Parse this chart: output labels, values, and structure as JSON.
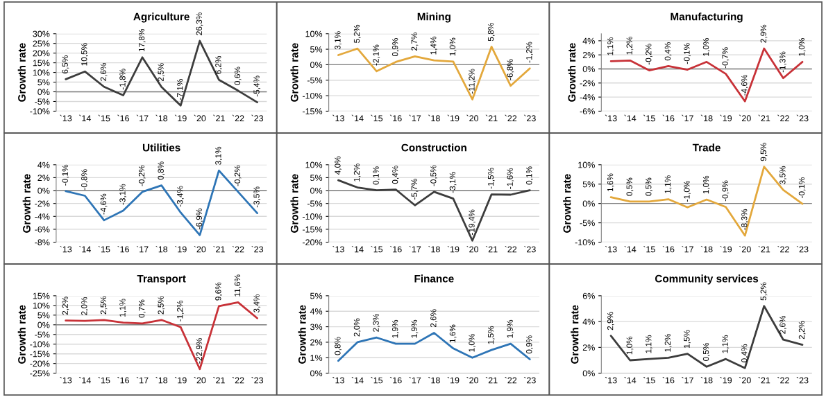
{
  "chart_data": [
    {
      "type": "line",
      "title": "Agriculture",
      "ylabel": "Growth rate",
      "categories": [
        "`13",
        "`14",
        "`15",
        "`16",
        "`17",
        "`18",
        "`19",
        "`20",
        "`21",
        "`22",
        "`23"
      ],
      "series": [
        {
          "color": "#3d3d3d",
          "values": [
            6.5,
            10.5,
            2.6,
            -1.8,
            17.8,
            2.5,
            -7.1,
            26.3,
            6.2,
            0.6,
            -5.4
          ],
          "value_labels": [
            "6,5%",
            "10,5%",
            "2,6%",
            "-1,8%",
            "17,8%",
            "2,5%",
            "-7,1%",
            "26,3%",
            "6,2%",
            "0,6%",
            "-5,4%"
          ]
        }
      ],
      "ylim": [
        -10,
        30
      ],
      "yticks": [
        {
          "value": -10,
          "label": "-10%"
        },
        {
          "value": -5,
          "label": "-5%"
        },
        {
          "value": 0,
          "label": "0%"
        },
        {
          "value": 5,
          "label": "5%"
        },
        {
          "value": 10,
          "label": "10%"
        },
        {
          "value": 15,
          "label": "15%"
        },
        {
          "value": 20,
          "label": "20%"
        },
        {
          "value": 25,
          "label": "25%"
        },
        {
          "value": 30,
          "label": "30%"
        }
      ],
      "grid": "y",
      "legend": false
    },
    {
      "type": "line",
      "title": "Mining",
      "ylabel": "Growth rate",
      "categories": [
        "`13",
        "`14",
        "`15",
        "`16",
        "`17",
        "`18",
        "`19",
        "`20",
        "`21",
        "`22",
        "`23"
      ],
      "series": [
        {
          "color": "#e3a83c",
          "values": [
            3.1,
            5.2,
            -2.1,
            0.9,
            2.7,
            1.4,
            1.0,
            -11.2,
            5.8,
            -6.8,
            -1.2
          ],
          "value_labels": [
            "3,1%",
            "5,2%",
            "-2,1%",
            "0,9%",
            "2,7%",
            "1,4%",
            "1,0%",
            "-11,2%",
            "5,8%",
            "-6,8%",
            "-1,2%"
          ]
        }
      ],
      "ylim": [
        -15,
        10
      ],
      "yticks": [
        {
          "value": -15,
          "label": "-15%"
        },
        {
          "value": -10,
          "label": "-10%"
        },
        {
          "value": -5,
          "label": "-5%"
        },
        {
          "value": 0,
          "label": "0%"
        },
        {
          "value": 5,
          "label": "5%"
        },
        {
          "value": 10,
          "label": "10%"
        }
      ],
      "grid": "y",
      "legend": false
    },
    {
      "type": "line",
      "title": "Manufacturing",
      "ylabel": "Growth rate",
      "categories": [
        "`13",
        "`14",
        "`15",
        "`16",
        "`17",
        "`18",
        "`19",
        "`20",
        "`21",
        "`22",
        "`23"
      ],
      "series": [
        {
          "color": "#c83238",
          "values": [
            1.1,
            1.2,
            -0.2,
            0.4,
            -0.1,
            1.0,
            -0.7,
            -4.6,
            2.9,
            -1.3,
            1.0
          ],
          "value_labels": [
            "1,1%",
            "1,2%",
            "-0,2%",
            "0,4%",
            "-0,1%",
            "1,0%",
            "-0,7%",
            "-4,6%",
            "2,9%",
            "-1,3%",
            "1,0%"
          ]
        }
      ],
      "ylim": [
        -6,
        5
      ],
      "yticks": [
        {
          "value": -6,
          "label": "-6%"
        },
        {
          "value": -4,
          "label": "-4%"
        },
        {
          "value": -2,
          "label": "-2%"
        },
        {
          "value": 0,
          "label": "0%"
        },
        {
          "value": 2,
          "label": "2%"
        },
        {
          "value": 4,
          "label": "4%"
        }
      ],
      "grid": "y",
      "legend": false
    },
    {
      "type": "line",
      "title": "Utilities",
      "ylabel": "Growth rate",
      "categories": [
        "`13",
        "`14",
        "`15",
        "`16",
        "`17",
        "`18",
        "`19",
        "`20",
        "`21",
        "`22",
        "`23"
      ],
      "series": [
        {
          "color": "#2e75b6",
          "values": [
            -0.1,
            -0.8,
            -4.6,
            -3.1,
            -0.2,
            0.8,
            -3.4,
            -6.9,
            3.1,
            -0.2,
            -3.5
          ],
          "value_labels": [
            "-0,1%",
            "-0,8%",
            "-4,6%",
            "-3,1%",
            "-0,2%",
            "0,8%",
            "-3,4%",
            "-6,9%",
            "3,1%",
            "-0,2%",
            "-3,5%"
          ]
        }
      ],
      "ylim": [
        -8,
        4
      ],
      "yticks": [
        {
          "value": -8,
          "label": "-8%"
        },
        {
          "value": -6,
          "label": "-6%"
        },
        {
          "value": -4,
          "label": "-4%"
        },
        {
          "value": -2,
          "label": "-2%"
        },
        {
          "value": 0,
          "label": "0%"
        },
        {
          "value": 2,
          "label": "2%"
        },
        {
          "value": 4,
          "label": "4%"
        }
      ],
      "grid": "y",
      "legend": false
    },
    {
      "type": "line",
      "title": "Construction",
      "ylabel": "Growth rate",
      "categories": [
        "`13",
        "`14",
        "`15",
        "`16",
        "`17",
        "`18",
        "`19",
        "`20",
        "`21",
        "`22",
        "`23"
      ],
      "series": [
        {
          "color": "#3d3d3d",
          "values": [
            4.0,
            1.2,
            0.1,
            0.4,
            -5.7,
            -0.5,
            -3.1,
            -19.4,
            -1.5,
            -1.6,
            0.1
          ],
          "value_labels": [
            "4,0%",
            "1,2%",
            "0,1%",
            "0,4%",
            "-5,7%",
            "-0,5%",
            "-3,1%",
            "-19,4%",
            "-1,5%",
            "-1,6%",
            "0,1%"
          ]
        }
      ],
      "ylim": [
        -20,
        10
      ],
      "yticks": [
        {
          "value": -20,
          "label": "-20%"
        },
        {
          "value": -15,
          "label": "-15%"
        },
        {
          "value": -10,
          "label": "-10%"
        },
        {
          "value": -5,
          "label": "-5%"
        },
        {
          "value": 0,
          "label": "0%"
        },
        {
          "value": 5,
          "label": "5%"
        },
        {
          "value": 10,
          "label": "10%"
        }
      ],
      "grid": "y",
      "legend": false
    },
    {
      "type": "line",
      "title": "Trade",
      "ylabel": "Growth rate",
      "categories": [
        "`13",
        "`14",
        "`15",
        "`16",
        "`17",
        "`18",
        "`19",
        "`20",
        "`21",
        "`22",
        "`23"
      ],
      "series": [
        {
          "color": "#e3a83c",
          "values": [
            1.6,
            0.5,
            0.5,
            1.1,
            -1.0,
            1.0,
            -0.9,
            -8.3,
            9.5,
            3.5,
            -0.1
          ],
          "value_labels": [
            "1,6%",
            "0,5%",
            "0,5%",
            "1,1%",
            "-1,0%",
            "1,0%",
            "-0,9%",
            "-8,3%",
            "9,5%",
            "3,5%",
            "-0,1%"
          ]
        }
      ],
      "ylim": [
        -10,
        10
      ],
      "yticks": [
        {
          "value": -10,
          "label": "-10%"
        },
        {
          "value": -5,
          "label": "-5%"
        },
        {
          "value": 0,
          "label": "0%"
        },
        {
          "value": 5,
          "label": "5%"
        },
        {
          "value": 10,
          "label": "10%"
        }
      ],
      "grid": "y",
      "legend": false
    },
    {
      "type": "line",
      "title": "Transport",
      "ylabel": "Growth rate",
      "categories": [
        "`13",
        "`14",
        "`15",
        "`16",
        "`17",
        "`18",
        "`19",
        "`20",
        "`21",
        "`22",
        "`23"
      ],
      "series": [
        {
          "color": "#c83238",
          "values": [
            2.2,
            2.0,
            2.5,
            1.1,
            0.7,
            2.5,
            -1.2,
            -22.9,
            9.6,
            11.6,
            3.4
          ],
          "value_labels": [
            "2,2%",
            "2,0%",
            "2,5%",
            "1,1%",
            "0,7%",
            "2,5%",
            "-1,2%",
            "-22,9%",
            "9,6%",
            "11,6%",
            "3,4%"
          ]
        }
      ],
      "ylim": [
        -25,
        15
      ],
      "yticks": [
        {
          "value": -25,
          "label": "-25%"
        },
        {
          "value": -20,
          "label": "-20%"
        },
        {
          "value": -15,
          "label": "-15%"
        },
        {
          "value": -10,
          "label": "-10%"
        },
        {
          "value": -5,
          "label": "-5%"
        },
        {
          "value": 0,
          "label": "0%"
        },
        {
          "value": 5,
          "label": "5%"
        },
        {
          "value": 10,
          "label": "10%"
        },
        {
          "value": 15,
          "label": "15%"
        }
      ],
      "grid": "y",
      "legend": false
    },
    {
      "type": "line",
      "title": "Finance",
      "ylabel": "Growth rate",
      "categories": [
        "`13",
        "`14",
        "`15",
        "`16",
        "`17",
        "`18",
        "`19",
        "`20",
        "`21",
        "`22",
        "`23"
      ],
      "series": [
        {
          "color": "#2e75b6",
          "values": [
            0.8,
            2.0,
            2.3,
            1.9,
            1.9,
            2.6,
            1.6,
            1.0,
            1.5,
            1.9,
            0.9
          ],
          "value_labels": [
            "0,8%",
            "2,0%",
            "2,3%",
            "1,9%",
            "1,9%",
            "2,6%",
            "1,6%",
            "1,0%",
            "1,5%",
            "1,9%",
            "0,9%"
          ]
        }
      ],
      "ylim": [
        0,
        5
      ],
      "yticks": [
        {
          "value": 0,
          "label": "0%"
        },
        {
          "value": 1,
          "label": "1%"
        },
        {
          "value": 2,
          "label": "2%"
        },
        {
          "value": 3,
          "label": "3%"
        },
        {
          "value": 4,
          "label": "4%"
        },
        {
          "value": 5,
          "label": "5%"
        }
      ],
      "grid": "y",
      "legend": false
    },
    {
      "type": "line",
      "title": "Community services",
      "ylabel": "Growth rate",
      "categories": [
        "`13",
        "`14",
        "`15",
        "`16",
        "`17",
        "`18",
        "`19",
        "`20",
        "`21",
        "`22",
        "`23"
      ],
      "series": [
        {
          "color": "#3d3d3d",
          "values": [
            2.9,
            1.0,
            1.1,
            1.2,
            1.5,
            0.5,
            1.1,
            0.4,
            5.2,
            2.6,
            2.2
          ],
          "value_labels": [
            "2,9%",
            "1,0%",
            "1,1%",
            "1,2%",
            "1,5%",
            "0,5%",
            "1,1%",
            "0,4%",
            "5,2%",
            "2,6%",
            "2,2%"
          ]
        }
      ],
      "ylim": [
        0,
        6
      ],
      "yticks": [
        {
          "value": 0,
          "label": "0%"
        },
        {
          "value": 2,
          "label": "2%"
        },
        {
          "value": 4,
          "label": "4%"
        },
        {
          "value": 6,
          "label": "6%"
        }
      ],
      "grid": "y",
      "legend": false
    }
  ]
}
